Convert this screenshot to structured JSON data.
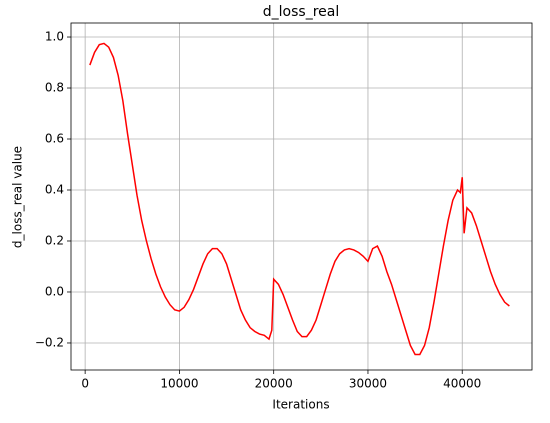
{
  "chart_data": {
    "type": "line",
    "title": "d_loss_real",
    "x_label": "Iterations",
    "y_label": "d_loss_real value",
    "x": [
      500,
      1000,
      1500,
      2000,
      2500,
      3000,
      3500,
      4000,
      4500,
      5000,
      5500,
      6000,
      6500,
      7000,
      7500,
      8000,
      8500,
      9000,
      9500,
      10000,
      10500,
      11000,
      11500,
      12000,
      12500,
      13000,
      13500,
      14000,
      14500,
      15000,
      15500,
      16000,
      16500,
      17000,
      17500,
      18000,
      18500,
      19000,
      19500,
      19800,
      20000,
      20500,
      21000,
      21500,
      22000,
      22500,
      23000,
      23500,
      24000,
      24500,
      25000,
      25500,
      26000,
      26500,
      27000,
      27500,
      28000,
      28500,
      29000,
      29500,
      30000,
      30500,
      31000,
      31500,
      32000,
      32500,
      33000,
      33500,
      34000,
      34500,
      35000,
      35500,
      36000,
      36500,
      37000,
      37500,
      38000,
      38500,
      39000,
      39500,
      39800,
      40000,
      40200,
      40500,
      41000,
      41500,
      42000,
      42500,
      43000,
      43500,
      44000,
      44500,
      45000
    ],
    "series": [
      {
        "name": "d_loss_real",
        "color": "#ff0000",
        "values": [
          0.89,
          0.94,
          0.97,
          0.975,
          0.96,
          0.92,
          0.85,
          0.75,
          0.62,
          0.5,
          0.38,
          0.28,
          0.2,
          0.13,
          0.07,
          0.02,
          -0.02,
          -0.05,
          -0.07,
          -0.075,
          -0.06,
          -0.03,
          0.01,
          0.06,
          0.11,
          0.15,
          0.17,
          0.17,
          0.15,
          0.11,
          0.05,
          -0.01,
          -0.07,
          -0.11,
          -0.14,
          -0.155,
          -0.165,
          -0.17,
          -0.185,
          -0.15,
          0.05,
          0.03,
          -0.01,
          -0.06,
          -0.11,
          -0.155,
          -0.175,
          -0.175,
          -0.15,
          -0.11,
          -0.05,
          0.01,
          0.07,
          0.12,
          0.15,
          0.165,
          0.17,
          0.165,
          0.155,
          0.14,
          0.12,
          0.17,
          0.18,
          0.14,
          0.08,
          0.03,
          -0.03,
          -0.09,
          -0.15,
          -0.21,
          -0.245,
          -0.245,
          -0.21,
          -0.14,
          -0.04,
          0.07,
          0.18,
          0.28,
          0.36,
          0.4,
          0.39,
          0.45,
          0.23,
          0.33,
          0.31,
          0.26,
          0.2,
          0.14,
          0.08,
          0.03,
          -0.01,
          -0.04,
          -0.055
        ]
      }
    ],
    "xlim": [
      -1500,
      47400
    ],
    "xticks": [
      0,
      10000,
      20000,
      30000,
      40000
    ],
    "ylim": [
      -0.306,
      1.055
    ],
    "yticks": [
      {
        "value": -0.2,
        "label": "−0.2"
      },
      {
        "value": 0,
        "label": "0.0"
      },
      {
        "value": 0.2,
        "label": "0.2"
      },
      {
        "value": 0.4,
        "label": "0.4"
      },
      {
        "value": 0.6,
        "label": "0.6"
      },
      {
        "value": 0.8,
        "label": "0.8"
      },
      {
        "value": 1,
        "label": "1.0"
      }
    ],
    "grid": true
  }
}
